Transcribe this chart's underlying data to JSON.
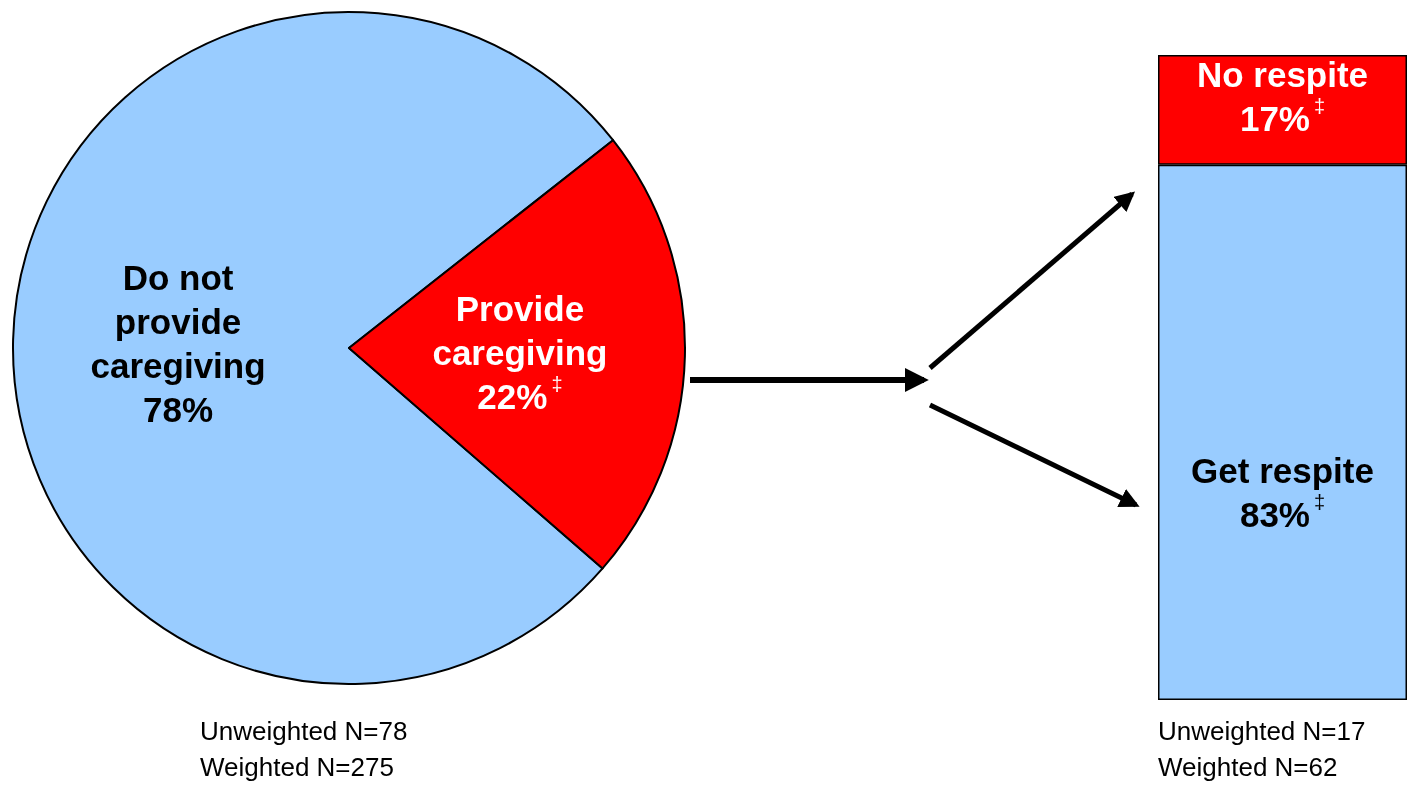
{
  "chart_data": [
    {
      "type": "pie",
      "categories": [
        "Do not provide caregiving",
        "Provide caregiving"
      ],
      "values": [
        78,
        22
      ],
      "colors": [
        "#99ccff",
        "#ff0000"
      ],
      "value_labels": [
        "78%",
        "22%$^{‡}$"
      ],
      "legend": false,
      "annotations": [
        "Unweighted N=78",
        "Weighted N=275"
      ]
    },
    {
      "type": "bar",
      "stacked": true,
      "categories": [
        null
      ],
      "series": [
        {
          "name": "Get respite",
          "color": "#99ccff",
          "values": [
            83
          ],
          "value_labels": [
            "83%$^{‡}$"
          ]
        },
        {
          "name": "No respite",
          "color": "#ff0000",
          "values": [
            17
          ],
          "value_labels": [
            "17%$^{‡}$"
          ]
        }
      ],
      "legend": false,
      "annotations": [
        "Unweighted N=17",
        "Weighted N=62"
      ]
    }
  ]
}
